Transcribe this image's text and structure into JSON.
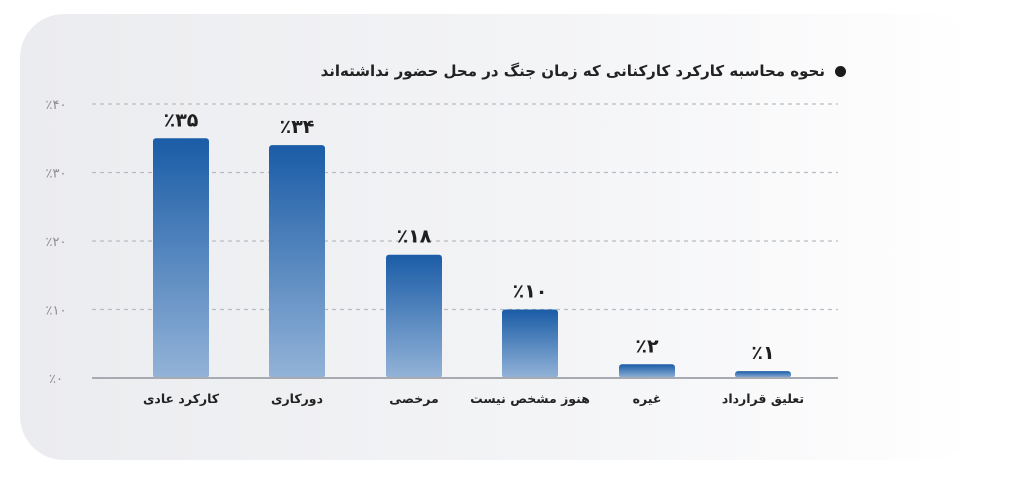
{
  "chart_data": {
    "type": "bar",
    "title": "نحوه محاسبه کارکرد کارکنانی که زمان جنگ در محل حضور نداشته‌اند",
    "categories": [
      "کارکرد عادی",
      "دورکاری",
      "مرخصی",
      "هنوز مشخص نیست",
      "غیره",
      "تعلیق قرارداد"
    ],
    "values": [
      35,
      34,
      18,
      10,
      2,
      1
    ],
    "value_labels": [
      "٪۳۵",
      "٪۳۴",
      "٪۱۸",
      "٪۱۰",
      "٪۲",
      "٪۱"
    ],
    "yticks": [
      0,
      10,
      20,
      30,
      40
    ],
    "ytick_labels": [
      "٪۰",
      "٪۱۰",
      "٪۲۰",
      "٪۳۰",
      "٪۴۰"
    ],
    "ylim": [
      0,
      40
    ],
    "grid": true,
    "legend": "none",
    "colors": {
      "bar_top": "#1a5ca6",
      "bar_bottom": "#93b3d8",
      "grid": "#b9bcc3",
      "axis": "#a7aab0"
    }
  }
}
